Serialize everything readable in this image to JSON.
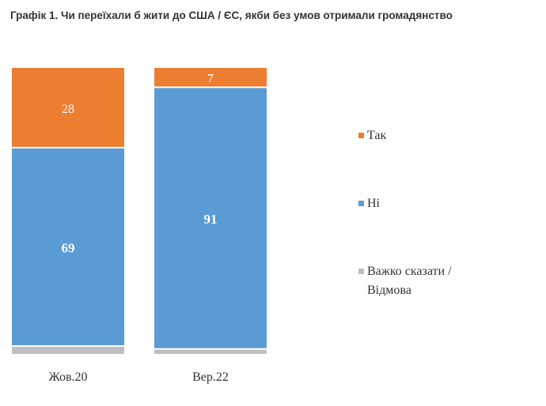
{
  "chart_data": {
    "type": "bar",
    "stacked": true,
    "title": "Графік 1. Чи переїхали б жити до США / ЄС, якби без умов отримали громадянство",
    "categories": [
      "Жов.20",
      "Вер.22"
    ],
    "series": [
      {
        "name": "Важко сказати / Відмова",
        "legend_lines": [
          "Важко сказати /",
          "Відмова"
        ],
        "values": [
          3,
          2
        ],
        "color": "#bfbfbf",
        "labeled": false
      },
      {
        "name": "Ні",
        "values": [
          69,
          91
        ],
        "color": "#5b9bd5",
        "labeled": true
      },
      {
        "name": "Так",
        "values": [
          28,
          7
        ],
        "color": "#ed7d31",
        "labeled": true
      }
    ],
    "ylim": [
      0,
      100
    ],
    "grid": false,
    "legend": "right"
  }
}
